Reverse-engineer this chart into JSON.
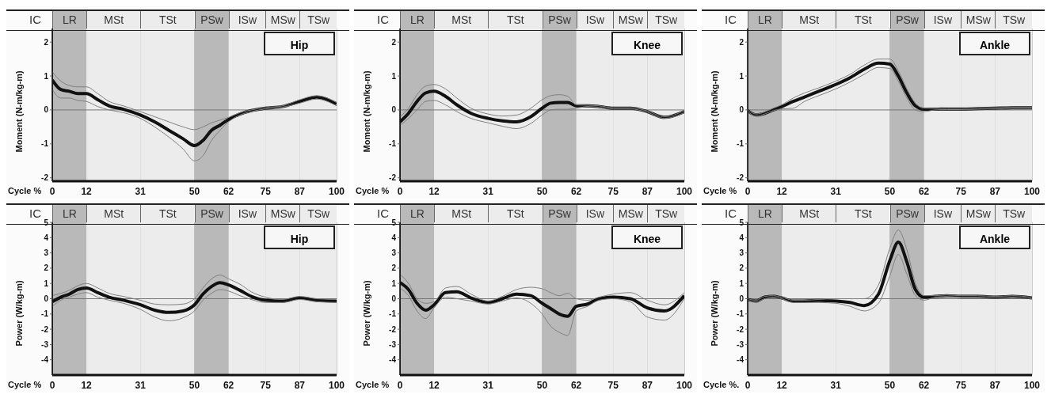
{
  "chart_data": [
    {
      "type": "line",
      "title": "Hip",
      "xlabel": "Cycle %",
      "ylabel": "Moment (N-m/kg-m)",
      "xlim": [
        0,
        100
      ],
      "xticks": [
        0,
        12,
        31,
        50,
        62,
        75,
        87,
        100
      ],
      "ylim": [
        -2.1,
        2.4
      ],
      "yticks": [
        -2,
        -1,
        0,
        1,
        2
      ],
      "grid": "x",
      "x": [
        0,
        3,
        6,
        9,
        12,
        16,
        20,
        25,
        31,
        36,
        41,
        46,
        50,
        53,
        56,
        59,
        62,
        66,
        70,
        75,
        81,
        87,
        93,
        100
      ],
      "series": [
        {
          "color": "#111111",
          "values": [
            0.88,
            0.6,
            0.55,
            0.48,
            0.48,
            0.3,
            0.12,
            0.02,
            -0.15,
            -0.35,
            -0.6,
            -0.85,
            -1.05,
            -0.9,
            -0.6,
            -0.45,
            -0.28,
            -0.12,
            -0.02,
            0.05,
            0.1,
            0.25,
            0.38,
            0.18
          ]
        },
        {
          "color": "#808080",
          "values": [
            0.6,
            0.35,
            0.35,
            0.28,
            0.25,
            0.1,
            0.0,
            -0.08,
            -0.25,
            -0.5,
            -0.8,
            -1.15,
            -1.5,
            -1.35,
            -0.9,
            -0.6,
            -0.35,
            -0.15,
            -0.05,
            0.03,
            0.08,
            0.2,
            0.32,
            0.12
          ]
        },
        {
          "color": "#808080",
          "values": [
            1.12,
            0.85,
            0.72,
            0.68,
            0.68,
            0.48,
            0.25,
            0.12,
            -0.05,
            -0.2,
            -0.35,
            -0.5,
            -0.58,
            -0.5,
            -0.38,
            -0.3,
            -0.22,
            -0.08,
            0.0,
            0.07,
            0.12,
            0.3,
            0.42,
            0.22
          ]
        }
      ],
      "bands": [
        {
          "axis": "x",
          "from": 0,
          "to": 12,
          "label": "LR",
          "color": "#b9b9b9"
        },
        {
          "axis": "x",
          "from": 12,
          "to": 31,
          "label": "MSt",
          "color": "#ececec"
        },
        {
          "axis": "x",
          "from": 31,
          "to": 50,
          "label": "TSt",
          "color": "#ececec"
        },
        {
          "axis": "x",
          "from": 50,
          "to": 62,
          "label": "PSw",
          "color": "#b9b9b9"
        },
        {
          "axis": "x",
          "from": 62,
          "to": 75,
          "label": "ISw",
          "color": "#ececec"
        },
        {
          "axis": "x",
          "from": 75,
          "to": 87,
          "label": "MSw",
          "color": "#ececec"
        },
        {
          "axis": "x",
          "from": 87,
          "to": 100,
          "label": "TSw",
          "color": "#ececec"
        }
      ],
      "ref_lines": [
        {
          "axis": "x",
          "value": 0,
          "label": "IC"
        },
        {
          "axis": "y",
          "value": 0,
          "color": "#777777"
        }
      ]
    },
    {
      "type": "line",
      "title": "Knee",
      "xlabel": "Cycle %",
      "ylabel": "Moment (N-m/kg-m)",
      "xlim": [
        0,
        100
      ],
      "xticks": [
        0,
        12,
        31,
        50,
        62,
        75,
        87,
        100
      ],
      "ylim": [
        -2.1,
        2.4
      ],
      "yticks": [
        -2,
        -1,
        0,
        1,
        2
      ],
      "grid": "x",
      "x": [
        0,
        3,
        6,
        9,
        12,
        16,
        20,
        25,
        31,
        36,
        41,
        46,
        50,
        53,
        56,
        59,
        62,
        66,
        70,
        75,
        81,
        87,
        93,
        100
      ],
      "series": [
        {
          "color": "#111111",
          "values": [
            -0.35,
            -0.1,
            0.25,
            0.5,
            0.55,
            0.4,
            0.15,
            -0.1,
            -0.25,
            -0.32,
            -0.35,
            -0.2,
            0.05,
            0.2,
            0.22,
            0.22,
            0.12,
            0.12,
            0.1,
            0.05,
            0.05,
            -0.05,
            -0.22,
            -0.05
          ]
        },
        {
          "color": "#808080",
          "values": [
            -0.45,
            -0.25,
            0.0,
            0.25,
            0.28,
            0.15,
            -0.05,
            -0.25,
            -0.38,
            -0.48,
            -0.55,
            -0.4,
            -0.15,
            0.0,
            0.02,
            0.02,
            0.05,
            0.1,
            0.08,
            0.03,
            0.03,
            -0.07,
            -0.25,
            -0.08
          ]
        },
        {
          "color": "#808080",
          "values": [
            -0.2,
            0.05,
            0.45,
            0.7,
            0.75,
            0.62,
            0.35,
            0.05,
            -0.12,
            -0.18,
            -0.15,
            0.05,
            0.3,
            0.42,
            0.45,
            0.4,
            0.15,
            0.14,
            0.12,
            0.07,
            0.07,
            -0.03,
            -0.2,
            -0.02
          ]
        }
      ],
      "bands": [
        {
          "axis": "x",
          "from": 0,
          "to": 12,
          "label": "LR",
          "color": "#b9b9b9"
        },
        {
          "axis": "x",
          "from": 12,
          "to": 31,
          "label": "MSt",
          "color": "#ececec"
        },
        {
          "axis": "x",
          "from": 31,
          "to": 50,
          "label": "TSt",
          "color": "#ececec"
        },
        {
          "axis": "x",
          "from": 50,
          "to": 62,
          "label": "PSw",
          "color": "#b9b9b9"
        },
        {
          "axis": "x",
          "from": 62,
          "to": 75,
          "label": "ISw",
          "color": "#ececec"
        },
        {
          "axis": "x",
          "from": 75,
          "to": 87,
          "label": "MSw",
          "color": "#ececec"
        },
        {
          "axis": "x",
          "from": 87,
          "to": 100,
          "label": "TSw",
          "color": "#ececec"
        }
      ],
      "ref_lines": [
        {
          "axis": "x",
          "value": 0,
          "label": "IC"
        },
        {
          "axis": "y",
          "value": 0,
          "color": "#777777"
        }
      ]
    },
    {
      "type": "line",
      "title": "Ankle",
      "xlabel": "Cycle %",
      "ylabel": "Moment (N-m/kg-m)",
      "xlim": [
        0,
        100
      ],
      "xticks": [
        0,
        12,
        31,
        50,
        62,
        75,
        87,
        100
      ],
      "ylim": [
        -2.1,
        2.4
      ],
      "yticks": [
        -2,
        -1,
        0,
        1,
        2
      ],
      "grid": "x",
      "x": [
        0,
        3,
        6,
        9,
        12,
        16,
        20,
        25,
        31,
        36,
        41,
        46,
        50,
        53,
        56,
        59,
        62,
        66,
        70,
        75,
        81,
        87,
        93,
        100
      ],
      "series": [
        {
          "color": "#111111",
          "values": [
            -0.02,
            -0.15,
            -0.1,
            0.0,
            0.1,
            0.25,
            0.38,
            0.55,
            0.75,
            0.95,
            1.2,
            1.38,
            1.35,
            1.0,
            0.5,
            0.12,
            0.02,
            0.02,
            0.03,
            0.03,
            0.04,
            0.05,
            0.06,
            0.06
          ]
        },
        {
          "color": "#808080",
          "values": [
            -0.05,
            -0.18,
            -0.12,
            -0.02,
            0.03,
            0.05,
            0.25,
            0.42,
            0.62,
            0.82,
            1.05,
            1.25,
            1.22,
            0.85,
            0.35,
            0.0,
            -0.05,
            0.0,
            0.01,
            0.01,
            0.02,
            0.03,
            0.04,
            0.04
          ]
        },
        {
          "color": "#808080",
          "values": [
            0.0,
            -0.12,
            -0.06,
            0.05,
            0.15,
            0.35,
            0.5,
            0.65,
            0.85,
            1.05,
            1.32,
            1.5,
            1.5,
            1.15,
            0.62,
            0.2,
            0.05,
            0.04,
            0.05,
            0.05,
            0.06,
            0.07,
            0.08,
            0.08
          ]
        }
      ],
      "bands": [
        {
          "axis": "x",
          "from": 0,
          "to": 12,
          "label": "LR",
          "color": "#b9b9b9"
        },
        {
          "axis": "x",
          "from": 12,
          "to": 31,
          "label": "MSt",
          "color": "#ececec"
        },
        {
          "axis": "x",
          "from": 31,
          "to": 50,
          "label": "TSt",
          "color": "#ececec"
        },
        {
          "axis": "x",
          "from": 50,
          "to": 62,
          "label": "PSw",
          "color": "#b9b9b9"
        },
        {
          "axis": "x",
          "from": 62,
          "to": 75,
          "label": "ISw",
          "color": "#ececec"
        },
        {
          "axis": "x",
          "from": 75,
          "to": 87,
          "label": "MSw",
          "color": "#ececec"
        },
        {
          "axis": "x",
          "from": 87,
          "to": 100,
          "label": "TSw",
          "color": "#ececec"
        }
      ],
      "ref_lines": [
        {
          "axis": "x",
          "value": 0,
          "label": "IC"
        },
        {
          "axis": "y",
          "value": 0,
          "color": "#777777"
        }
      ]
    },
    {
      "type": "line",
      "title": "Hip",
      "xlabel": "Cycle %",
      "ylabel": "Power (W/kg-m)",
      "xlim": [
        0,
        100
      ],
      "xticks": [
        0,
        12,
        31,
        50,
        62,
        75,
        87,
        100
      ],
      "ylim": [
        -5,
        5
      ],
      "yticks": [
        -4,
        -3,
        -2,
        -1,
        0,
        1,
        2,
        3,
        4,
        5
      ],
      "grid": "x",
      "x": [
        0,
        3,
        6,
        9,
        12,
        16,
        20,
        25,
        31,
        36,
        41,
        46,
        50,
        53,
        56,
        59,
        62,
        66,
        70,
        75,
        81,
        87,
        93,
        100
      ],
      "series": [
        {
          "color": "#111111",
          "values": [
            -0.2,
            0.1,
            0.3,
            0.6,
            0.7,
            0.4,
            0.1,
            -0.1,
            -0.4,
            -0.75,
            -0.9,
            -0.8,
            -0.4,
            0.3,
            0.8,
            1.05,
            0.9,
            0.55,
            0.15,
            -0.1,
            -0.15,
            0.05,
            -0.1,
            -0.15
          ]
        },
        {
          "color": "#808080",
          "values": [
            -0.5,
            -0.1,
            0.1,
            0.3,
            0.4,
            0.1,
            -0.1,
            -0.3,
            -0.7,
            -1.2,
            -1.45,
            -1.25,
            -0.8,
            -0.1,
            0.35,
            0.6,
            0.5,
            0.2,
            -0.05,
            -0.25,
            -0.25,
            -0.05,
            -0.2,
            -0.25
          ]
        },
        {
          "color": "#808080",
          "values": [
            0.2,
            0.35,
            0.55,
            0.85,
            1.0,
            0.7,
            0.35,
            0.15,
            -0.1,
            -0.35,
            -0.4,
            -0.35,
            0.0,
            0.7,
            1.3,
            1.55,
            1.3,
            0.95,
            0.45,
            0.1,
            -0.05,
            0.15,
            0.0,
            -0.05
          ]
        }
      ],
      "bands": [
        {
          "axis": "x",
          "from": 0,
          "to": 12,
          "label": "LR",
          "color": "#b9b9b9"
        },
        {
          "axis": "x",
          "from": 12,
          "to": 31,
          "label": "MSt",
          "color": "#ececec"
        },
        {
          "axis": "x",
          "from": 31,
          "to": 50,
          "label": "TSt",
          "color": "#ececec"
        },
        {
          "axis": "x",
          "from": 50,
          "to": 62,
          "label": "PSw",
          "color": "#b9b9b9"
        },
        {
          "axis": "x",
          "from": 62,
          "to": 75,
          "label": "ISw",
          "color": "#ececec"
        },
        {
          "axis": "x",
          "from": 75,
          "to": 87,
          "label": "MSw",
          "color": "#ececec"
        },
        {
          "axis": "x",
          "from": 87,
          "to": 100,
          "label": "TSw",
          "color": "#ececec"
        }
      ],
      "ref_lines": [
        {
          "axis": "x",
          "value": 0,
          "label": "IC"
        },
        {
          "axis": "y",
          "value": 0,
          "color": "#777777"
        }
      ]
    },
    {
      "type": "line",
      "title": "Knee",
      "xlabel": "Cycle %",
      "ylabel": "Power (W/kg-m)",
      "xlim": [
        0,
        100
      ],
      "xticks": [
        0,
        12,
        31,
        50,
        62,
        75,
        87,
        100
      ],
      "ylim": [
        -5,
        5
      ],
      "yticks": [
        -4,
        -3,
        -2,
        -1,
        0,
        1,
        2,
        3,
        4,
        5
      ],
      "grid": "x",
      "x": [
        0,
        3,
        6,
        9,
        12,
        16,
        20,
        25,
        31,
        36,
        41,
        46,
        50,
        53,
        56,
        59,
        62,
        66,
        70,
        75,
        81,
        87,
        93,
        100
      ],
      "series": [
        {
          "color": "#111111",
          "values": [
            1.05,
            0.6,
            -0.3,
            -0.75,
            -0.4,
            0.4,
            0.45,
            0.05,
            -0.25,
            0.0,
            0.3,
            0.2,
            -0.3,
            -0.65,
            -1.0,
            -1.15,
            -0.5,
            -0.35,
            0.0,
            0.1,
            0.0,
            -0.6,
            -0.8,
            0.2
          ]
        },
        {
          "color": "#808080",
          "values": [
            0.7,
            0.2,
            -0.8,
            -1.3,
            -0.6,
            0.1,
            0.0,
            -0.15,
            -0.35,
            -0.15,
            0.05,
            -0.3,
            -1.0,
            -1.8,
            -2.2,
            -2.4,
            -0.8,
            -0.5,
            -0.1,
            0.0,
            -0.2,
            -1.2,
            -1.4,
            0.0
          ]
        },
        {
          "color": "#808080",
          "values": [
            1.6,
            1.0,
            0.0,
            -0.3,
            -0.2,
            0.7,
            0.8,
            0.3,
            -0.15,
            0.15,
            0.6,
            0.75,
            0.65,
            0.4,
            0.2,
            0.35,
            0.0,
            -0.1,
            0.1,
            0.3,
            0.4,
            -0.1,
            -0.4,
            0.4
          ]
        }
      ],
      "bands": [
        {
          "axis": "x",
          "from": 0,
          "to": 12,
          "label": "LR",
          "color": "#b9b9b9"
        },
        {
          "axis": "x",
          "from": 12,
          "to": 31,
          "label": "MSt",
          "color": "#ececec"
        },
        {
          "axis": "x",
          "from": 31,
          "to": 50,
          "label": "TSt",
          "color": "#ececec"
        },
        {
          "axis": "x",
          "from": 50,
          "to": 62,
          "label": "PSw",
          "color": "#b9b9b9"
        },
        {
          "axis": "x",
          "from": 62,
          "to": 75,
          "label": "ISw",
          "color": "#ececec"
        },
        {
          "axis": "x",
          "from": 75,
          "to": 87,
          "label": "MSw",
          "color": "#ececec"
        },
        {
          "axis": "x",
          "from": 87,
          "to": 100,
          "label": "TSw",
          "color": "#ececec"
        }
      ],
      "ref_lines": [
        {
          "axis": "x",
          "value": 0,
          "label": "IC"
        },
        {
          "axis": "y",
          "value": 0,
          "color": "#777777"
        }
      ]
    },
    {
      "type": "line",
      "title": "Ankle",
      "xlabel": "Cycle %.",
      "ylabel": "Power (W/kg-m)",
      "xlim": [
        0,
        100
      ],
      "xticks": [
        0,
        12,
        31,
        50,
        62,
        75,
        87,
        100
      ],
      "ylim": [
        -5,
        5
      ],
      "yticks": [
        -4,
        -3,
        -2,
        -1,
        0,
        1,
        2,
        3,
        4,
        5
      ],
      "grid": "x",
      "x": [
        0,
        3,
        6,
        9,
        12,
        16,
        20,
        25,
        31,
        36,
        41,
        46,
        50,
        53,
        56,
        59,
        62,
        66,
        70,
        75,
        81,
        87,
        93,
        100
      ],
      "series": [
        {
          "color": "#111111",
          "values": [
            -0.05,
            -0.15,
            0.1,
            0.15,
            0.05,
            -0.15,
            -0.15,
            -0.12,
            -0.15,
            -0.25,
            -0.45,
            0.3,
            2.5,
            3.7,
            2.4,
            0.6,
            0.1,
            0.15,
            0.2,
            0.15,
            0.15,
            0.1,
            0.15,
            0.05
          ]
        },
        {
          "color": "#808080",
          "values": [
            -0.1,
            -0.2,
            0.0,
            0.1,
            0.0,
            -0.25,
            -0.25,
            -0.25,
            -0.3,
            -0.5,
            -0.8,
            -0.3,
            1.5,
            2.9,
            1.6,
            0.2,
            -0.1,
            0.1,
            0.15,
            0.1,
            0.1,
            0.05,
            0.1,
            0.0
          ]
        },
        {
          "color": "#808080",
          "values": [
            0.0,
            -0.1,
            0.15,
            0.2,
            0.1,
            -0.1,
            -0.1,
            -0.05,
            0.0,
            0.0,
            0.0,
            0.9,
            3.3,
            4.5,
            3.2,
            1.0,
            0.2,
            0.2,
            0.25,
            0.2,
            0.2,
            0.15,
            0.2,
            0.1
          ]
        }
      ],
      "bands": [
        {
          "axis": "x",
          "from": 0,
          "to": 12,
          "label": "LR",
          "color": "#b9b9b9"
        },
        {
          "axis": "x",
          "from": 12,
          "to": 31,
          "label": "MSt",
          "color": "#ececec"
        },
        {
          "axis": "x",
          "from": 31,
          "to": 50,
          "label": "TSt",
          "color": "#ececec"
        },
        {
          "axis": "x",
          "from": 50,
          "to": 62,
          "label": "PSw",
          "color": "#b9b9b9"
        },
        {
          "axis": "x",
          "from": 62,
          "to": 75,
          "label": "ISw",
          "color": "#ececec"
        },
        {
          "axis": "x",
          "from": 75,
          "to": 87,
          "label": "MSw",
          "color": "#ececec"
        },
        {
          "axis": "x",
          "from": 87,
          "to": 100,
          "label": "TSw",
          "color": "#ececec"
        }
      ],
      "ref_lines": [
        {
          "axis": "x",
          "value": 0,
          "label": "IC"
        },
        {
          "axis": "y",
          "value": 0,
          "color": "#777777"
        }
      ]
    }
  ]
}
